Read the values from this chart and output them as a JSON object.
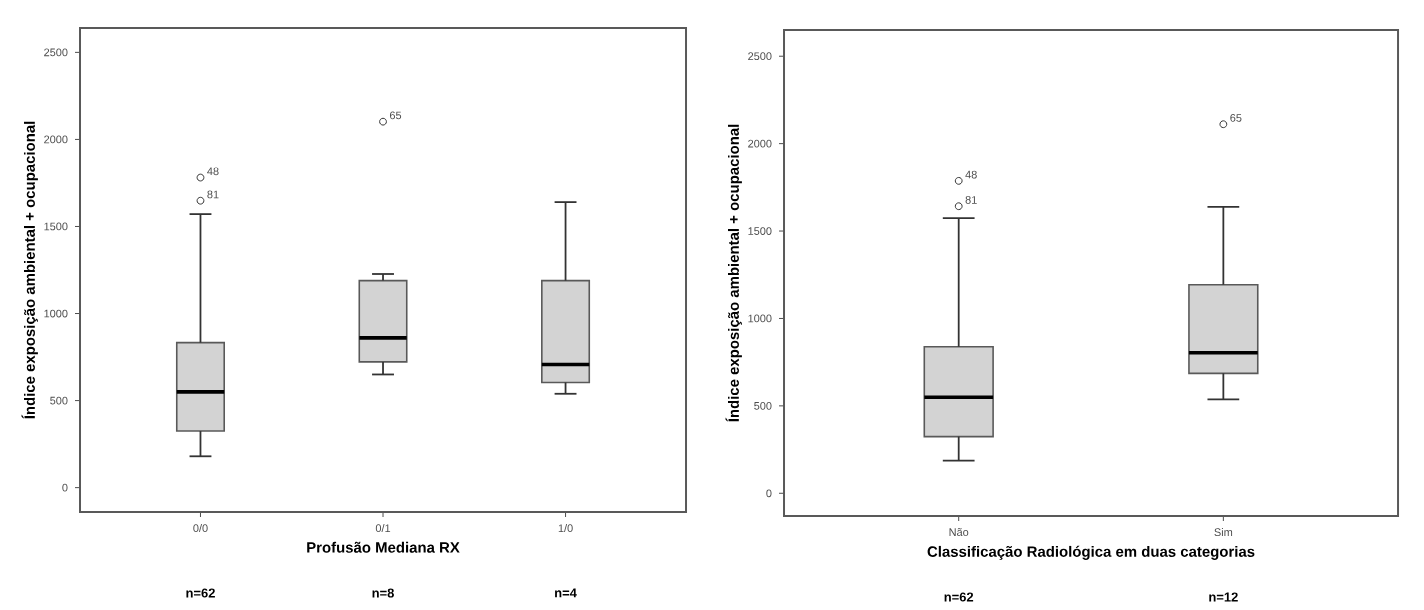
{
  "chart_data": [
    {
      "type": "box",
      "xlabel": "Profusão Mediana RX",
      "ylabel": "Índice exposição ambiental + ocupacional",
      "categories": [
        "0/0",
        "0/1",
        "1/0"
      ],
      "color": "#d3d3d3",
      "ylim": [
        -140,
        2640
      ],
      "yticks": [
        0,
        500,
        1000,
        1500,
        2000,
        2500
      ],
      "grid": false,
      "boxes": [
        {
          "low": 180,
          "q1": 325,
          "median": 550,
          "q3": 833,
          "high": 1571,
          "outliers": [
            1781,
            1648
          ]
        },
        {
          "low": 650,
          "q1": 722,
          "median": 860,
          "q3": 1189,
          "high": 1227,
          "outliers": [
            2102
          ]
        },
        {
          "low": 539,
          "q1": 604,
          "median": 707,
          "q3": 1189,
          "high": 1640
        }
      ],
      "annotations": [
        "48",
        "81",
        "65",
        "n=62",
        "n=8",
        "n=4"
      ]
    },
    {
      "type": "box",
      "xlabel": "Classificação Radiológica em duas categorias",
      "ylabel": "Índice exposição ambiental + ocupacional",
      "categories": [
        "Não",
        "Sim"
      ],
      "color": "#d3d3d3",
      "ylim": [
        -130,
        2650
      ],
      "yticks": [
        0,
        500,
        1000,
        1500,
        2000,
        2500
      ],
      "grid": false,
      "boxes": [
        {
          "low": 187,
          "q1": 324,
          "median": 549,
          "q3": 838,
          "high": 1574,
          "outliers": [
            1787,
            1642
          ]
        },
        {
          "low": 537,
          "q1": 686,
          "median": 804,
          "q3": 1193,
          "high": 1638,
          "outliers": [
            2111
          ]
        }
      ],
      "annotations": [
        "48",
        "81",
        "65",
        "n=62",
        "n=12"
      ]
    }
  ]
}
